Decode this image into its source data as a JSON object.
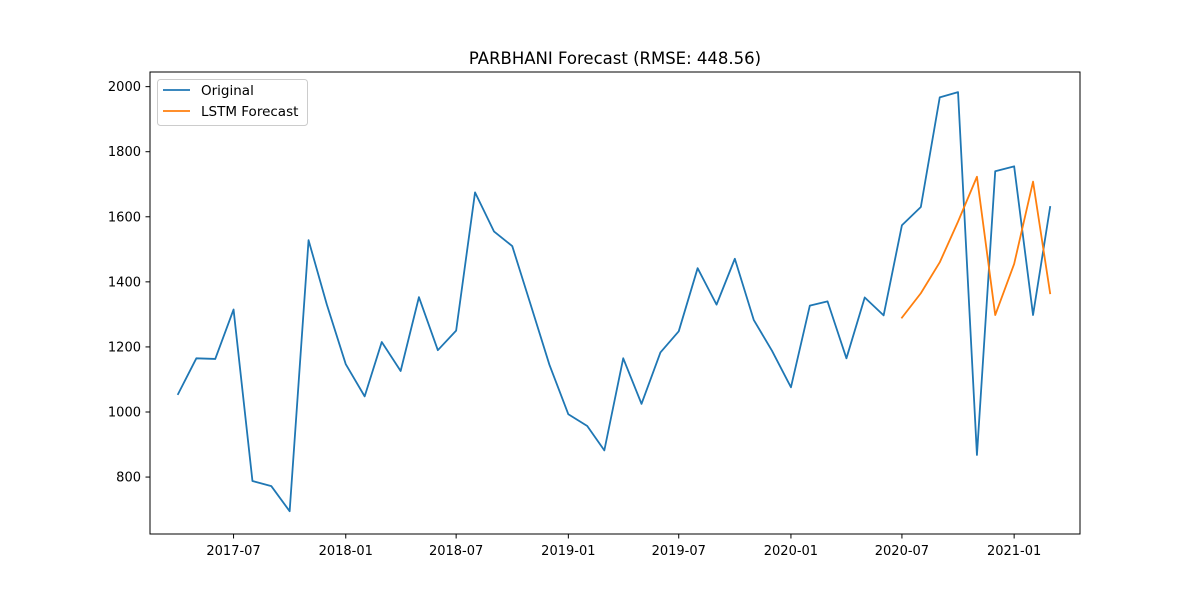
{
  "chart_data": {
    "type": "line",
    "title": "PARBHANI Forecast (RMSE: 448.56)",
    "xlabel": "",
    "ylabel": "",
    "xlim": [
      "2017-02-14",
      "2021-04-19"
    ],
    "ylim": [
      625,
      2045
    ],
    "x_ticks": [
      {
        "value": "2017-07-01",
        "label": "2017-07"
      },
      {
        "value": "2018-01-01",
        "label": "2018-01"
      },
      {
        "value": "2018-07-01",
        "label": "2018-07"
      },
      {
        "value": "2019-01-01",
        "label": "2019-01"
      },
      {
        "value": "2019-07-01",
        "label": "2019-07"
      },
      {
        "value": "2020-01-01",
        "label": "2020-01"
      },
      {
        "value": "2020-07-01",
        "label": "2020-07"
      },
      {
        "value": "2021-01-01",
        "label": "2021-01"
      }
    ],
    "y_ticks": [
      {
        "value": 800,
        "label": "800"
      },
      {
        "value": 1000,
        "label": "1000"
      },
      {
        "value": 1200,
        "label": "1200"
      },
      {
        "value": 1400,
        "label": "1400"
      },
      {
        "value": 1600,
        "label": "1600"
      },
      {
        "value": 1800,
        "label": "1800"
      },
      {
        "value": 2000,
        "label": "2000"
      }
    ],
    "grid": false,
    "legend_position": "top-left",
    "series": [
      {
        "name": "Original",
        "color": "#1f77b4",
        "x": [
          "2017-04-01",
          "2017-05-01",
          "2017-06-01",
          "2017-07-01",
          "2017-08-01",
          "2017-09-01",
          "2017-10-01",
          "2017-11-01",
          "2017-12-01",
          "2018-01-01",
          "2018-02-01",
          "2018-03-01",
          "2018-04-01",
          "2018-05-01",
          "2018-06-01",
          "2018-07-01",
          "2018-08-01",
          "2018-09-01",
          "2018-10-01",
          "2018-11-01",
          "2018-12-01",
          "2019-01-01",
          "2019-02-01",
          "2019-03-01",
          "2019-04-01",
          "2019-05-01",
          "2019-06-01",
          "2019-07-01",
          "2019-08-01",
          "2019-09-01",
          "2019-10-01",
          "2019-11-01",
          "2019-12-01",
          "2020-01-01",
          "2020-02-01",
          "2020-03-01",
          "2020-04-01",
          "2020-05-01",
          "2020-06-01",
          "2020-07-01",
          "2020-08-01",
          "2020-09-01",
          "2020-10-01",
          "2020-11-01",
          "2020-12-01",
          "2021-01-01",
          "2021-02-01",
          "2021-03-01"
        ],
        "values": [
          1055,
          1165,
          1163,
          1315,
          788,
          772,
          695,
          1528,
          1330,
          1147,
          1048,
          1215,
          1126,
          1353,
          1190,
          1250,
          1675,
          1555,
          1510,
          1325,
          1145,
          993,
          957,
          882,
          1165,
          1025,
          1183,
          1248,
          1442,
          1330,
          1471,
          1283,
          1188,
          1076,
          1327,
          1340,
          1165,
          1352,
          1297,
          1574,
          1630,
          1967,
          1983,
          868,
          1740,
          1755,
          1298,
          1630
        ]
      },
      {
        "name": "LSTM Forecast",
        "color": "#ff7f0e",
        "x": [
          "2020-07-01",
          "2020-08-01",
          "2020-09-01",
          "2020-10-01",
          "2020-11-01",
          "2020-12-01",
          "2021-01-01",
          "2021-02-01",
          "2021-03-01"
        ],
        "values": [
          1290,
          1365,
          1460,
          1585,
          1723,
          1298,
          1455,
          1708,
          1365
        ]
      }
    ]
  }
}
